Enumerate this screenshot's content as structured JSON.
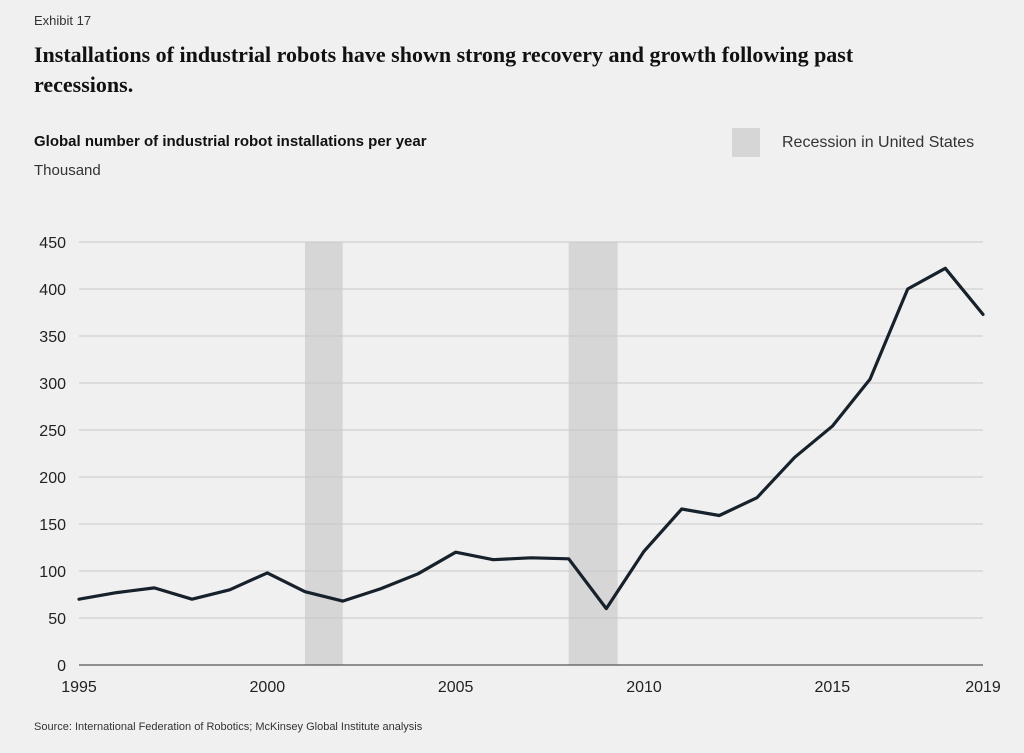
{
  "header": {
    "exhibit": "Exhibit 17",
    "title": "Installations of industrial robots have shown strong recovery and growth following past recessions."
  },
  "legend": {
    "recession_label": "Recession in United States"
  },
  "footer": {
    "source": "Source: International Federation of Robotics; McKinsey Global Institute analysis"
  },
  "colors": {
    "line": "#17212b",
    "recession": "#d6d6d6",
    "grid": "#c8c8c8",
    "background": "#f0f0f0"
  },
  "chart_data": {
    "type": "line",
    "title": "Global number of industrial robot installations per year",
    "ylabel": "Thousand",
    "xlabel": "",
    "x": [
      1995,
      1996,
      1997,
      1998,
      1999,
      2000,
      2001,
      2002,
      2003,
      2004,
      2005,
      2006,
      2007,
      2008,
      2009,
      2010,
      2011,
      2012,
      2013,
      2014,
      2015,
      2016,
      2017,
      2018,
      2019
    ],
    "series": [
      {
        "name": "Installations",
        "values": [
          70,
          77,
          82,
          70,
          80,
          98,
          78,
          68,
          81,
          97,
          120,
          112,
          114,
          113,
          60,
          121,
          166,
          159,
          178,
          221,
          254,
          304,
          400,
          422,
          373
        ]
      }
    ],
    "xlim": [
      1995,
      2019
    ],
    "ylim": [
      0,
      450
    ],
    "xticks": [
      1995,
      2000,
      2005,
      2010,
      2015,
      2019
    ],
    "yticks": [
      0,
      50,
      100,
      150,
      200,
      250,
      300,
      350,
      400,
      450
    ],
    "recessions": [
      [
        2001,
        2002
      ],
      [
        2008,
        2009.3
      ]
    ],
    "grid": true
  }
}
